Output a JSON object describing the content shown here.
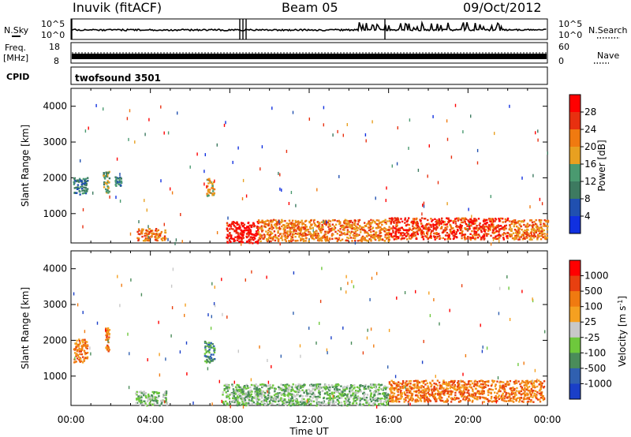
{
  "header": {
    "station": "Inuvik (fitACF)",
    "beam": "Beam 05",
    "date": "09/Oct/2012"
  },
  "strips": {
    "nsky_label": "N.Sky",
    "nsky_ticks": [
      "10^5",
      "10^0"
    ],
    "nsearch_label": "N.Search",
    "freq_label_1": "Freq.",
    "freq_label_2": "[MHz]",
    "freq_ticks": [
      "18",
      "8"
    ],
    "nave_ticks": [
      "60",
      "0"
    ],
    "nave_label": "Nave",
    "cpid_label": "CPID",
    "cpid_name": "twofsound 3501"
  },
  "colors": {
    "power": [
      "#1030e0",
      "#2050b0",
      "#3d7a60",
      "#4a9a70",
      "#e8a020",
      "#f07a10",
      "#e83010",
      "#ff0000"
    ],
    "velocity": [
      "#1a3fc8",
      "#3060b0",
      "#4a8c5a",
      "#6ec83c",
      "#c8c8c8",
      "#f5a020",
      "#f07a10",
      "#e84010",
      "#ff0000"
    ]
  },
  "chart_data": [
    {
      "type": "heatmap",
      "name": "power",
      "ylabel": "Slant Range [km]",
      "ylim": [
        180,
        4500
      ],
      "yticks": [
        1000,
        2000,
        3000,
        4000
      ],
      "colorbar": {
        "label": "Power [dB]",
        "ticks": [
          "28",
          "24",
          "20",
          "16",
          "12",
          "8",
          "4"
        ],
        "range": [
          0,
          32
        ]
      },
      "regions": [
        {
          "x0": 0.1,
          "x1": 0.8,
          "y0": 1550,
          "y1": 2050,
          "level": 2
        },
        {
          "x0": 1.6,
          "x1": 1.9,
          "y0": 1600,
          "y1": 2200,
          "level": 3
        },
        {
          "x0": 2.2,
          "x1": 2.5,
          "y0": 1800,
          "y1": 2050,
          "level": 2
        },
        {
          "x0": 3.3,
          "x1": 4.8,
          "y0": 250,
          "y1": 600,
          "level": 5
        },
        {
          "x0": 6.8,
          "x1": 7.2,
          "y0": 1500,
          "y1": 2000,
          "level": 4
        },
        {
          "x0": 7.8,
          "x1": 9.4,
          "y0": 200,
          "y1": 800,
          "level": 7
        },
        {
          "x0": 9.4,
          "x1": 16.0,
          "y0": 250,
          "y1": 850,
          "level": 5
        },
        {
          "x0": 16.0,
          "x1": 22.0,
          "y0": 300,
          "y1": 900,
          "level": 6
        },
        {
          "x0": 22.0,
          "x1": 24.0,
          "y0": 300,
          "y1": 850,
          "level": 5
        }
      ]
    },
    {
      "type": "heatmap",
      "name": "velocity",
      "ylabel": "Slant Range [km]",
      "ylim": [
        180,
        4500
      ],
      "yticks": [
        1000,
        2000,
        3000,
        4000
      ],
      "xlabel": "Time UT",
      "xticks": [
        "00:00",
        "04:00",
        "08:00",
        "12:00",
        "16:00",
        "20:00",
        "00:00"
      ],
      "xlim": [
        0,
        24
      ],
      "colorbar": {
        "label": "Velocity [m s^-1]",
        "ticks": [
          "1000",
          "500",
          "100",
          "25",
          "-25",
          "-100",
          "-500",
          "-1000"
        ]
      },
      "regions": [
        {
          "x0": 0.1,
          "x1": 0.8,
          "y0": 1400,
          "y1": 2050,
          "level": 6
        },
        {
          "x0": 1.7,
          "x1": 1.9,
          "y0": 1700,
          "y1": 2400,
          "level": 6
        },
        {
          "x0": 3.2,
          "x1": 4.8,
          "y0": 200,
          "y1": 600,
          "level": 3
        },
        {
          "x0": 6.7,
          "x1": 7.2,
          "y0": 1400,
          "y1": 2000,
          "level": 2
        },
        {
          "x0": 7.6,
          "x1": 16.0,
          "y0": 200,
          "y1": 800,
          "level": 3
        },
        {
          "x0": 16.0,
          "x1": 23.8,
          "y0": 300,
          "y1": 900,
          "level": 6
        }
      ]
    }
  ]
}
